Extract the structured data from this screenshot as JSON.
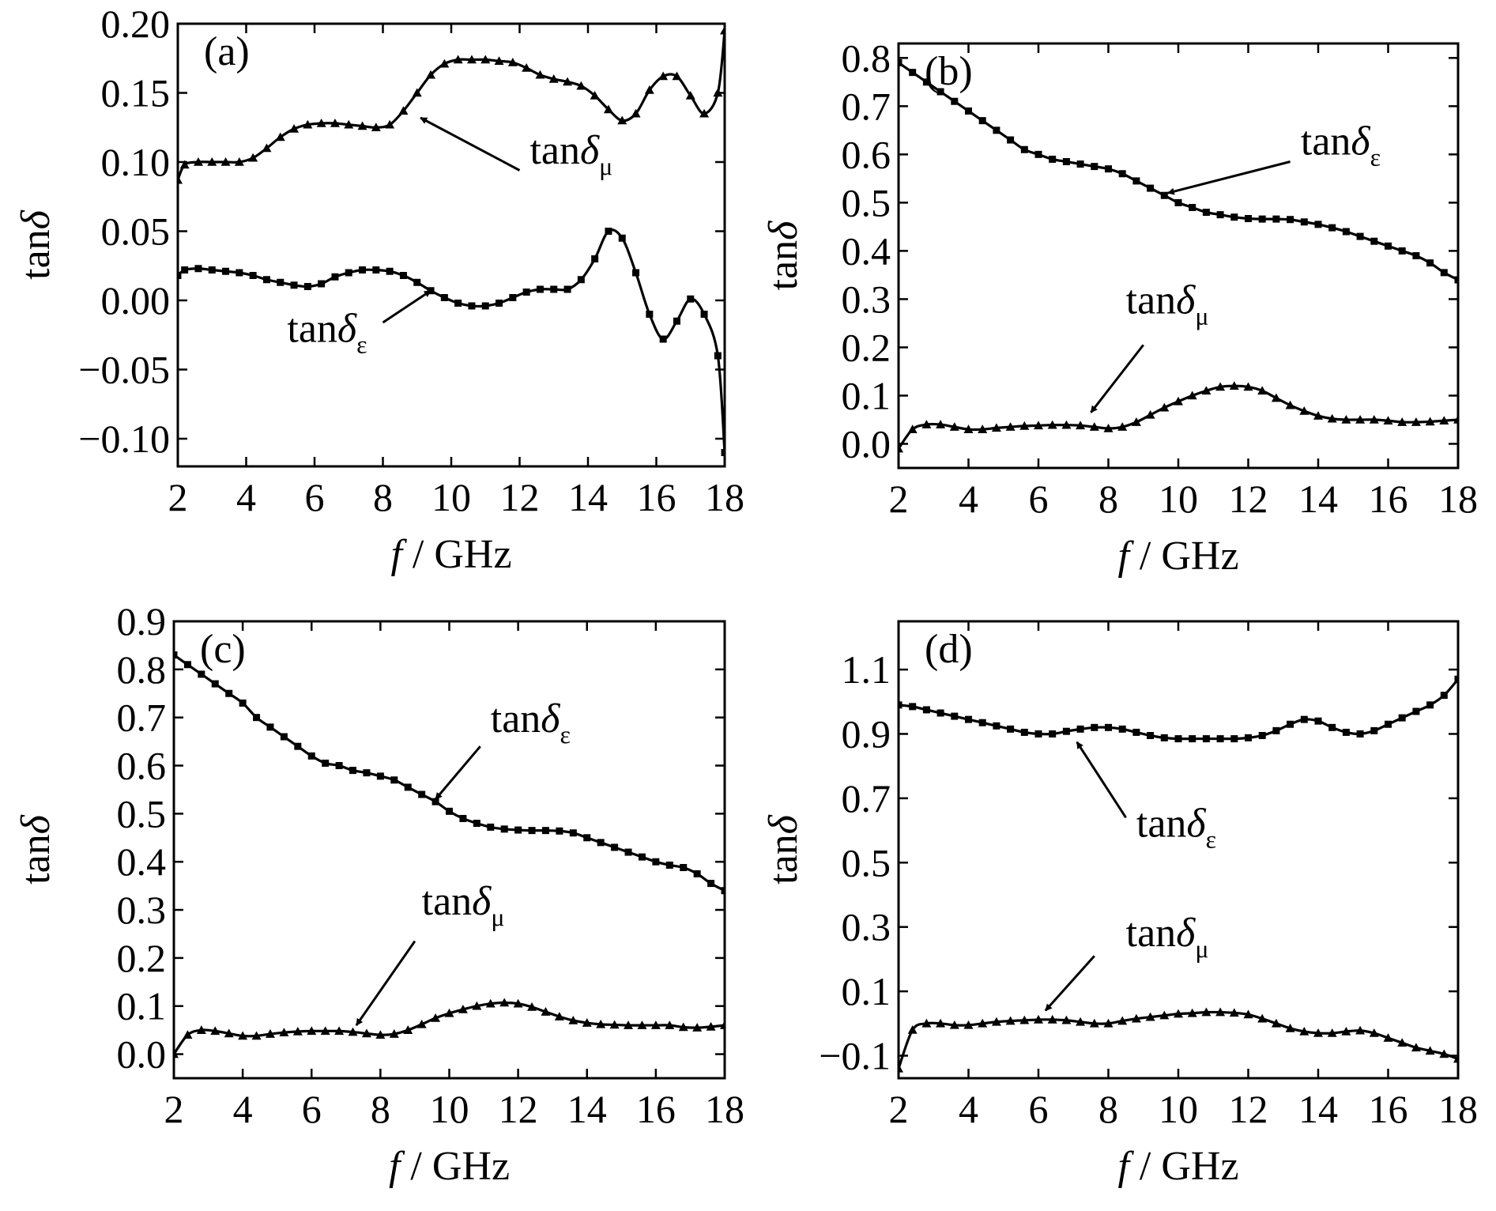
{
  "chart_data": [
    {
      "type": "line",
      "panel_label": "(a)",
      "xlabel_italic": "f",
      "xlabel_rest": " / GHz",
      "ylabel_main": "tan",
      "ylabel_delta": "δ",
      "xlim": [
        2,
        18
      ],
      "ylim": [
        -0.12,
        0.2
      ],
      "xticks": [
        2,
        4,
        6,
        8,
        10,
        12,
        14,
        16,
        18
      ],
      "xtick_labels": [
        "2",
        "4",
        "6",
        "8",
        "10",
        "12",
        "14",
        "16",
        "18"
      ],
      "yticks": [
        -0.1,
        -0.05,
        0,
        0.05,
        0.1,
        0.15,
        0.2
      ],
      "ytick_labels": [
        "−0.10",
        "−0.05",
        "0.00",
        "0.05",
        "0.10",
        "0.15",
        "0.20"
      ],
      "grid": false,
      "series": [
        {
          "marker": "triangle",
          "x": [
            2,
            2.2,
            2.6,
            3,
            3.4,
            3.8,
            4.2,
            4.6,
            5,
            5.4,
            5.8,
            6.2,
            6.6,
            7,
            7.4,
            7.8,
            8.2,
            8.6,
            9,
            9.4,
            9.8,
            10.2,
            10.6,
            11,
            11.4,
            11.8,
            12.2,
            12.6,
            13,
            13.4,
            13.8,
            14.2,
            14.6,
            15,
            15.4,
            15.8,
            16.2,
            16.6,
            17,
            17.4,
            17.8,
            18
          ],
          "y": [
            0.087,
            0.098,
            0.1,
            0.1,
            0.1,
            0.1,
            0.103,
            0.11,
            0.118,
            0.124,
            0.127,
            0.128,
            0.128,
            0.127,
            0.126,
            0.125,
            0.127,
            0.137,
            0.15,
            0.163,
            0.171,
            0.174,
            0.174,
            0.174,
            0.173,
            0.172,
            0.168,
            0.163,
            0.16,
            0.158,
            0.155,
            0.148,
            0.138,
            0.13,
            0.135,
            0.152,
            0.162,
            0.162,
            0.148,
            0.135,
            0.15,
            0.195
          ]
        },
        {
          "marker": "square",
          "x": [
            2,
            2.2,
            2.6,
            3,
            3.4,
            3.8,
            4.2,
            4.6,
            5,
            5.4,
            5.8,
            6.2,
            6.6,
            7,
            7.4,
            7.8,
            8.2,
            8.6,
            9,
            9.4,
            9.8,
            10.2,
            10.6,
            11,
            11.4,
            11.8,
            12.2,
            12.6,
            13,
            13.4,
            13.8,
            14.2,
            14.6,
            15,
            15.4,
            15.8,
            16.2,
            16.6,
            17,
            17.4,
            17.8,
            18
          ],
          "y": [
            0.018,
            0.022,
            0.023,
            0.022,
            0.021,
            0.02,
            0.018,
            0.015,
            0.013,
            0.011,
            0.01,
            0.012,
            0.017,
            0.02,
            0.022,
            0.022,
            0.021,
            0.018,
            0.013,
            0.007,
            0.002,
            -0.002,
            -0.004,
            -0.004,
            -0.002,
            0.002,
            0.006,
            0.008,
            0.008,
            0.008,
            0.015,
            0.03,
            0.05,
            0.045,
            0.02,
            -0.01,
            -0.028,
            -0.015,
            0.001,
            -0.01,
            -0.04,
            -0.11
          ]
        }
      ],
      "annotations": [
        {
          "main": "tan",
          "delta": "δ",
          "sub": "μ",
          "text_x": 12.3,
          "text_y": 0.099,
          "arrow_from_x": 12.0,
          "arrow_from_y": 0.094,
          "arrow_to_x": 9.1,
          "arrow_to_y": 0.132
        },
        {
          "main": "tan",
          "delta": "δ",
          "sub": "ε",
          "text_x": 5.2,
          "text_y": -0.03,
          "arrow_from_x": 8.0,
          "arrow_from_y": -0.016,
          "arrow_to_x": 9.4,
          "arrow_to_y": 0.007
        }
      ]
    },
    {
      "type": "line",
      "panel_label": "(b)",
      "xlabel_italic": "f",
      "xlabel_rest": " / GHz",
      "ylabel_main": "tan",
      "ylabel_delta": "δ",
      "xlim": [
        2,
        18
      ],
      "ylim": [
        -0.05,
        0.83
      ],
      "xticks": [
        2,
        4,
        6,
        8,
        10,
        12,
        14,
        16,
        18
      ],
      "xtick_labels": [
        "2",
        "4",
        "6",
        "8",
        "10",
        "12",
        "14",
        "16",
        "18"
      ],
      "yticks": [
        0,
        0.1,
        0.2,
        0.3,
        0.4,
        0.5,
        0.6,
        0.7,
        0.8
      ],
      "ytick_labels": [
        "0.0",
        "0.1",
        "0.2",
        "0.3",
        "0.4",
        "0.5",
        "0.6",
        "0.7",
        "0.8"
      ],
      "grid": false,
      "series": [
        {
          "marker": "square",
          "x": [
            2,
            2.4,
            2.8,
            3.2,
            3.6,
            4,
            4.4,
            4.8,
            5.2,
            5.6,
            6,
            6.4,
            6.8,
            7.2,
            7.6,
            8,
            8.4,
            8.8,
            9.2,
            9.6,
            10,
            10.4,
            10.8,
            11.2,
            11.6,
            12,
            12.4,
            12.8,
            13.2,
            13.6,
            14,
            14.4,
            14.8,
            15.2,
            15.6,
            16,
            16.4,
            16.8,
            17.2,
            17.6,
            18
          ],
          "y": [
            0.79,
            0.77,
            0.75,
            0.73,
            0.71,
            0.69,
            0.67,
            0.65,
            0.63,
            0.61,
            0.6,
            0.59,
            0.585,
            0.58,
            0.575,
            0.57,
            0.56,
            0.545,
            0.53,
            0.515,
            0.5,
            0.49,
            0.48,
            0.475,
            0.47,
            0.467,
            0.466,
            0.466,
            0.465,
            0.46,
            0.455,
            0.448,
            0.44,
            0.43,
            0.42,
            0.41,
            0.4,
            0.39,
            0.375,
            0.355,
            0.34
          ]
        },
        {
          "marker": "triangle",
          "x": [
            2,
            2.4,
            2.8,
            3.2,
            3.6,
            4,
            4.4,
            4.8,
            5.2,
            5.6,
            6,
            6.4,
            6.8,
            7.2,
            7.6,
            8,
            8.4,
            8.8,
            9.2,
            9.6,
            10,
            10.4,
            10.8,
            11.2,
            11.6,
            12,
            12.4,
            12.8,
            13.2,
            13.6,
            14,
            14.4,
            14.8,
            15.2,
            15.6,
            16,
            16.4,
            16.8,
            17.2,
            17.6,
            18
          ],
          "y": [
            -0.01,
            0.03,
            0.04,
            0.04,
            0.035,
            0.03,
            0.03,
            0.033,
            0.035,
            0.037,
            0.038,
            0.039,
            0.039,
            0.038,
            0.035,
            0.032,
            0.035,
            0.045,
            0.06,
            0.075,
            0.088,
            0.1,
            0.11,
            0.118,
            0.12,
            0.118,
            0.11,
            0.095,
            0.08,
            0.068,
            0.058,
            0.052,
            0.05,
            0.05,
            0.05,
            0.048,
            0.045,
            0.045,
            0.046,
            0.048,
            0.05
          ]
        }
      ],
      "annotations": [
        {
          "main": "tan",
          "delta": "δ",
          "sub": "ε",
          "text_x": 13.5,
          "text_y": 0.6,
          "arrow_from_x": 13.2,
          "arrow_from_y": 0.585,
          "arrow_to_x": 9.7,
          "arrow_to_y": 0.52
        },
        {
          "main": "tan",
          "delta": "δ",
          "sub": "μ",
          "text_x": 8.5,
          "text_y": 0.27,
          "arrow_from_x": 9.0,
          "arrow_from_y": 0.205,
          "arrow_to_x": 7.5,
          "arrow_to_y": 0.065
        }
      ]
    },
    {
      "type": "line",
      "panel_label": "(c)",
      "xlabel_italic": "f",
      "xlabel_rest": " / GHz",
      "ylabel_main": "tan",
      "ylabel_delta": "δ",
      "xlim": [
        2,
        18
      ],
      "ylim": [
        -0.05,
        0.9
      ],
      "xticks": [
        2,
        4,
        6,
        8,
        10,
        12,
        14,
        16,
        18
      ],
      "xtick_labels": [
        "2",
        "4",
        "6",
        "8",
        "10",
        "12",
        "14",
        "16",
        "18"
      ],
      "yticks": [
        0,
        0.1,
        0.2,
        0.3,
        0.4,
        0.5,
        0.6,
        0.7,
        0.8,
        0.9
      ],
      "ytick_labels": [
        "0.0",
        "0.1",
        "0.2",
        "0.3",
        "0.4",
        "0.5",
        "0.6",
        "0.7",
        "0.8",
        "0.9"
      ],
      "grid": false,
      "series": [
        {
          "marker": "square",
          "x": [
            2,
            2.4,
            2.8,
            3.2,
            3.6,
            4,
            4.4,
            4.8,
            5.2,
            5.6,
            6,
            6.4,
            6.8,
            7.2,
            7.6,
            8,
            8.4,
            8.8,
            9.2,
            9.6,
            10,
            10.4,
            10.8,
            11.2,
            11.6,
            12,
            12.4,
            12.8,
            13.2,
            13.6,
            14,
            14.4,
            14.8,
            15.2,
            15.6,
            16,
            16.4,
            16.8,
            17.2,
            17.6,
            18
          ],
          "y": [
            0.83,
            0.81,
            0.79,
            0.77,
            0.75,
            0.73,
            0.7,
            0.68,
            0.66,
            0.64,
            0.62,
            0.605,
            0.6,
            0.59,
            0.585,
            0.578,
            0.57,
            0.555,
            0.54,
            0.525,
            0.505,
            0.49,
            0.48,
            0.472,
            0.468,
            0.466,
            0.465,
            0.465,
            0.464,
            0.46,
            0.45,
            0.44,
            0.43,
            0.42,
            0.41,
            0.4,
            0.393,
            0.388,
            0.375,
            0.355,
            0.34
          ]
        },
        {
          "marker": "triangle",
          "x": [
            2,
            2.4,
            2.8,
            3.2,
            3.6,
            4,
            4.4,
            4.8,
            5.2,
            5.6,
            6,
            6.4,
            6.8,
            7.2,
            7.6,
            8,
            8.4,
            8.8,
            9.2,
            9.6,
            10,
            10.4,
            10.8,
            11.2,
            11.6,
            12,
            12.4,
            12.8,
            13.2,
            13.6,
            14,
            14.4,
            14.8,
            15.2,
            15.6,
            16,
            16.4,
            16.8,
            17.2,
            17.6,
            18
          ],
          "y": [
            0.0,
            0.04,
            0.05,
            0.048,
            0.043,
            0.038,
            0.038,
            0.042,
            0.045,
            0.047,
            0.048,
            0.048,
            0.048,
            0.046,
            0.043,
            0.04,
            0.042,
            0.05,
            0.062,
            0.075,
            0.085,
            0.093,
            0.1,
            0.105,
            0.107,
            0.105,
            0.098,
            0.088,
            0.078,
            0.07,
            0.065,
            0.062,
            0.061,
            0.06,
            0.06,
            0.06,
            0.06,
            0.056,
            0.055,
            0.057,
            0.06
          ]
        }
      ],
      "annotations": [
        {
          "main": "tan",
          "delta": "δ",
          "sub": "ε",
          "text_x": 11.2,
          "text_y": 0.67,
          "arrow_from_x": 10.9,
          "arrow_from_y": 0.64,
          "arrow_to_x": 9.6,
          "arrow_to_y": 0.53
        },
        {
          "main": "tan",
          "delta": "δ",
          "sub": "μ",
          "text_x": 9.2,
          "text_y": 0.29,
          "arrow_from_x": 9.0,
          "arrow_from_y": 0.235,
          "arrow_to_x": 7.3,
          "arrow_to_y": 0.06
        }
      ]
    },
    {
      "type": "line",
      "panel_label": "(d)",
      "xlabel_italic": "f",
      "xlabel_rest": " / GHz",
      "ylabel_main": "tan",
      "ylabel_delta": "δ",
      "xlim": [
        2,
        18
      ],
      "ylim": [
        -0.17,
        1.25
      ],
      "xticks": [
        2,
        4,
        6,
        8,
        10,
        12,
        14,
        16,
        18
      ],
      "xtick_labels": [
        "2",
        "4",
        "6",
        "8",
        "10",
        "12",
        "14",
        "16",
        "18"
      ],
      "yticks": [
        -0.1,
        0.1,
        0.3,
        0.5,
        0.7,
        0.9,
        1.1
      ],
      "ytick_labels": [
        "−0.1",
        "0.1",
        "0.3",
        "0.5",
        "0.7",
        "0.9",
        "1.1"
      ],
      "grid": false,
      "series": [
        {
          "marker": "square",
          "x": [
            2,
            2.4,
            2.8,
            3.2,
            3.6,
            4,
            4.4,
            4.8,
            5.2,
            5.6,
            6,
            6.4,
            6.8,
            7.2,
            7.6,
            8,
            8.4,
            8.8,
            9.2,
            9.6,
            10,
            10.4,
            10.8,
            11.2,
            11.6,
            12,
            12.4,
            12.8,
            13.2,
            13.6,
            14,
            14.4,
            14.8,
            15.2,
            15.6,
            16,
            16.4,
            16.8,
            17.2,
            17.6,
            18
          ],
          "y": [
            0.99,
            0.985,
            0.975,
            0.965,
            0.955,
            0.945,
            0.935,
            0.925,
            0.915,
            0.905,
            0.9,
            0.9,
            0.908,
            0.915,
            0.92,
            0.92,
            0.915,
            0.905,
            0.895,
            0.888,
            0.885,
            0.885,
            0.885,
            0.885,
            0.885,
            0.888,
            0.895,
            0.91,
            0.93,
            0.945,
            0.94,
            0.92,
            0.905,
            0.9,
            0.91,
            0.93,
            0.95,
            0.97,
            0.99,
            1.02,
            1.07
          ]
        },
        {
          "marker": "triangle",
          "x": [
            2,
            2.4,
            2.8,
            3.2,
            3.6,
            4,
            4.4,
            4.8,
            5.2,
            5.6,
            6,
            6.4,
            6.8,
            7.2,
            7.6,
            8,
            8.4,
            8.8,
            9.2,
            9.6,
            10,
            10.4,
            10.8,
            11.2,
            11.6,
            12,
            12.4,
            12.8,
            13.2,
            13.6,
            14,
            14.4,
            14.8,
            15.2,
            15.6,
            16,
            16.4,
            16.8,
            17.2,
            17.6,
            18
          ],
          "y": [
            -0.14,
            -0.02,
            0.0,
            0.0,
            -0.005,
            -0.005,
            0.0,
            0.005,
            0.008,
            0.01,
            0.012,
            0.012,
            0.01,
            0.005,
            0.0,
            0.0,
            0.008,
            0.015,
            0.02,
            0.025,
            0.03,
            0.032,
            0.035,
            0.035,
            0.033,
            0.028,
            0.015,
            0.0,
            -0.015,
            -0.025,
            -0.03,
            -0.03,
            -0.025,
            -0.022,
            -0.03,
            -0.045,
            -0.06,
            -0.075,
            -0.085,
            -0.095,
            -0.11
          ]
        }
      ],
      "annotations": [
        {
          "main": "tan",
          "delta": "δ",
          "sub": "ε",
          "text_x": 8.8,
          "text_y": 0.58,
          "arrow_from_x": 8.5,
          "arrow_from_y": 0.64,
          "arrow_to_x": 7.1,
          "arrow_to_y": 0.875
        },
        {
          "main": "tan",
          "delta": "δ",
          "sub": "μ",
          "text_x": 8.5,
          "text_y": 0.24,
          "arrow_from_x": 7.6,
          "arrow_from_y": 0.21,
          "arrow_to_x": 6.2,
          "arrow_to_y": 0.04
        }
      ]
    }
  ]
}
